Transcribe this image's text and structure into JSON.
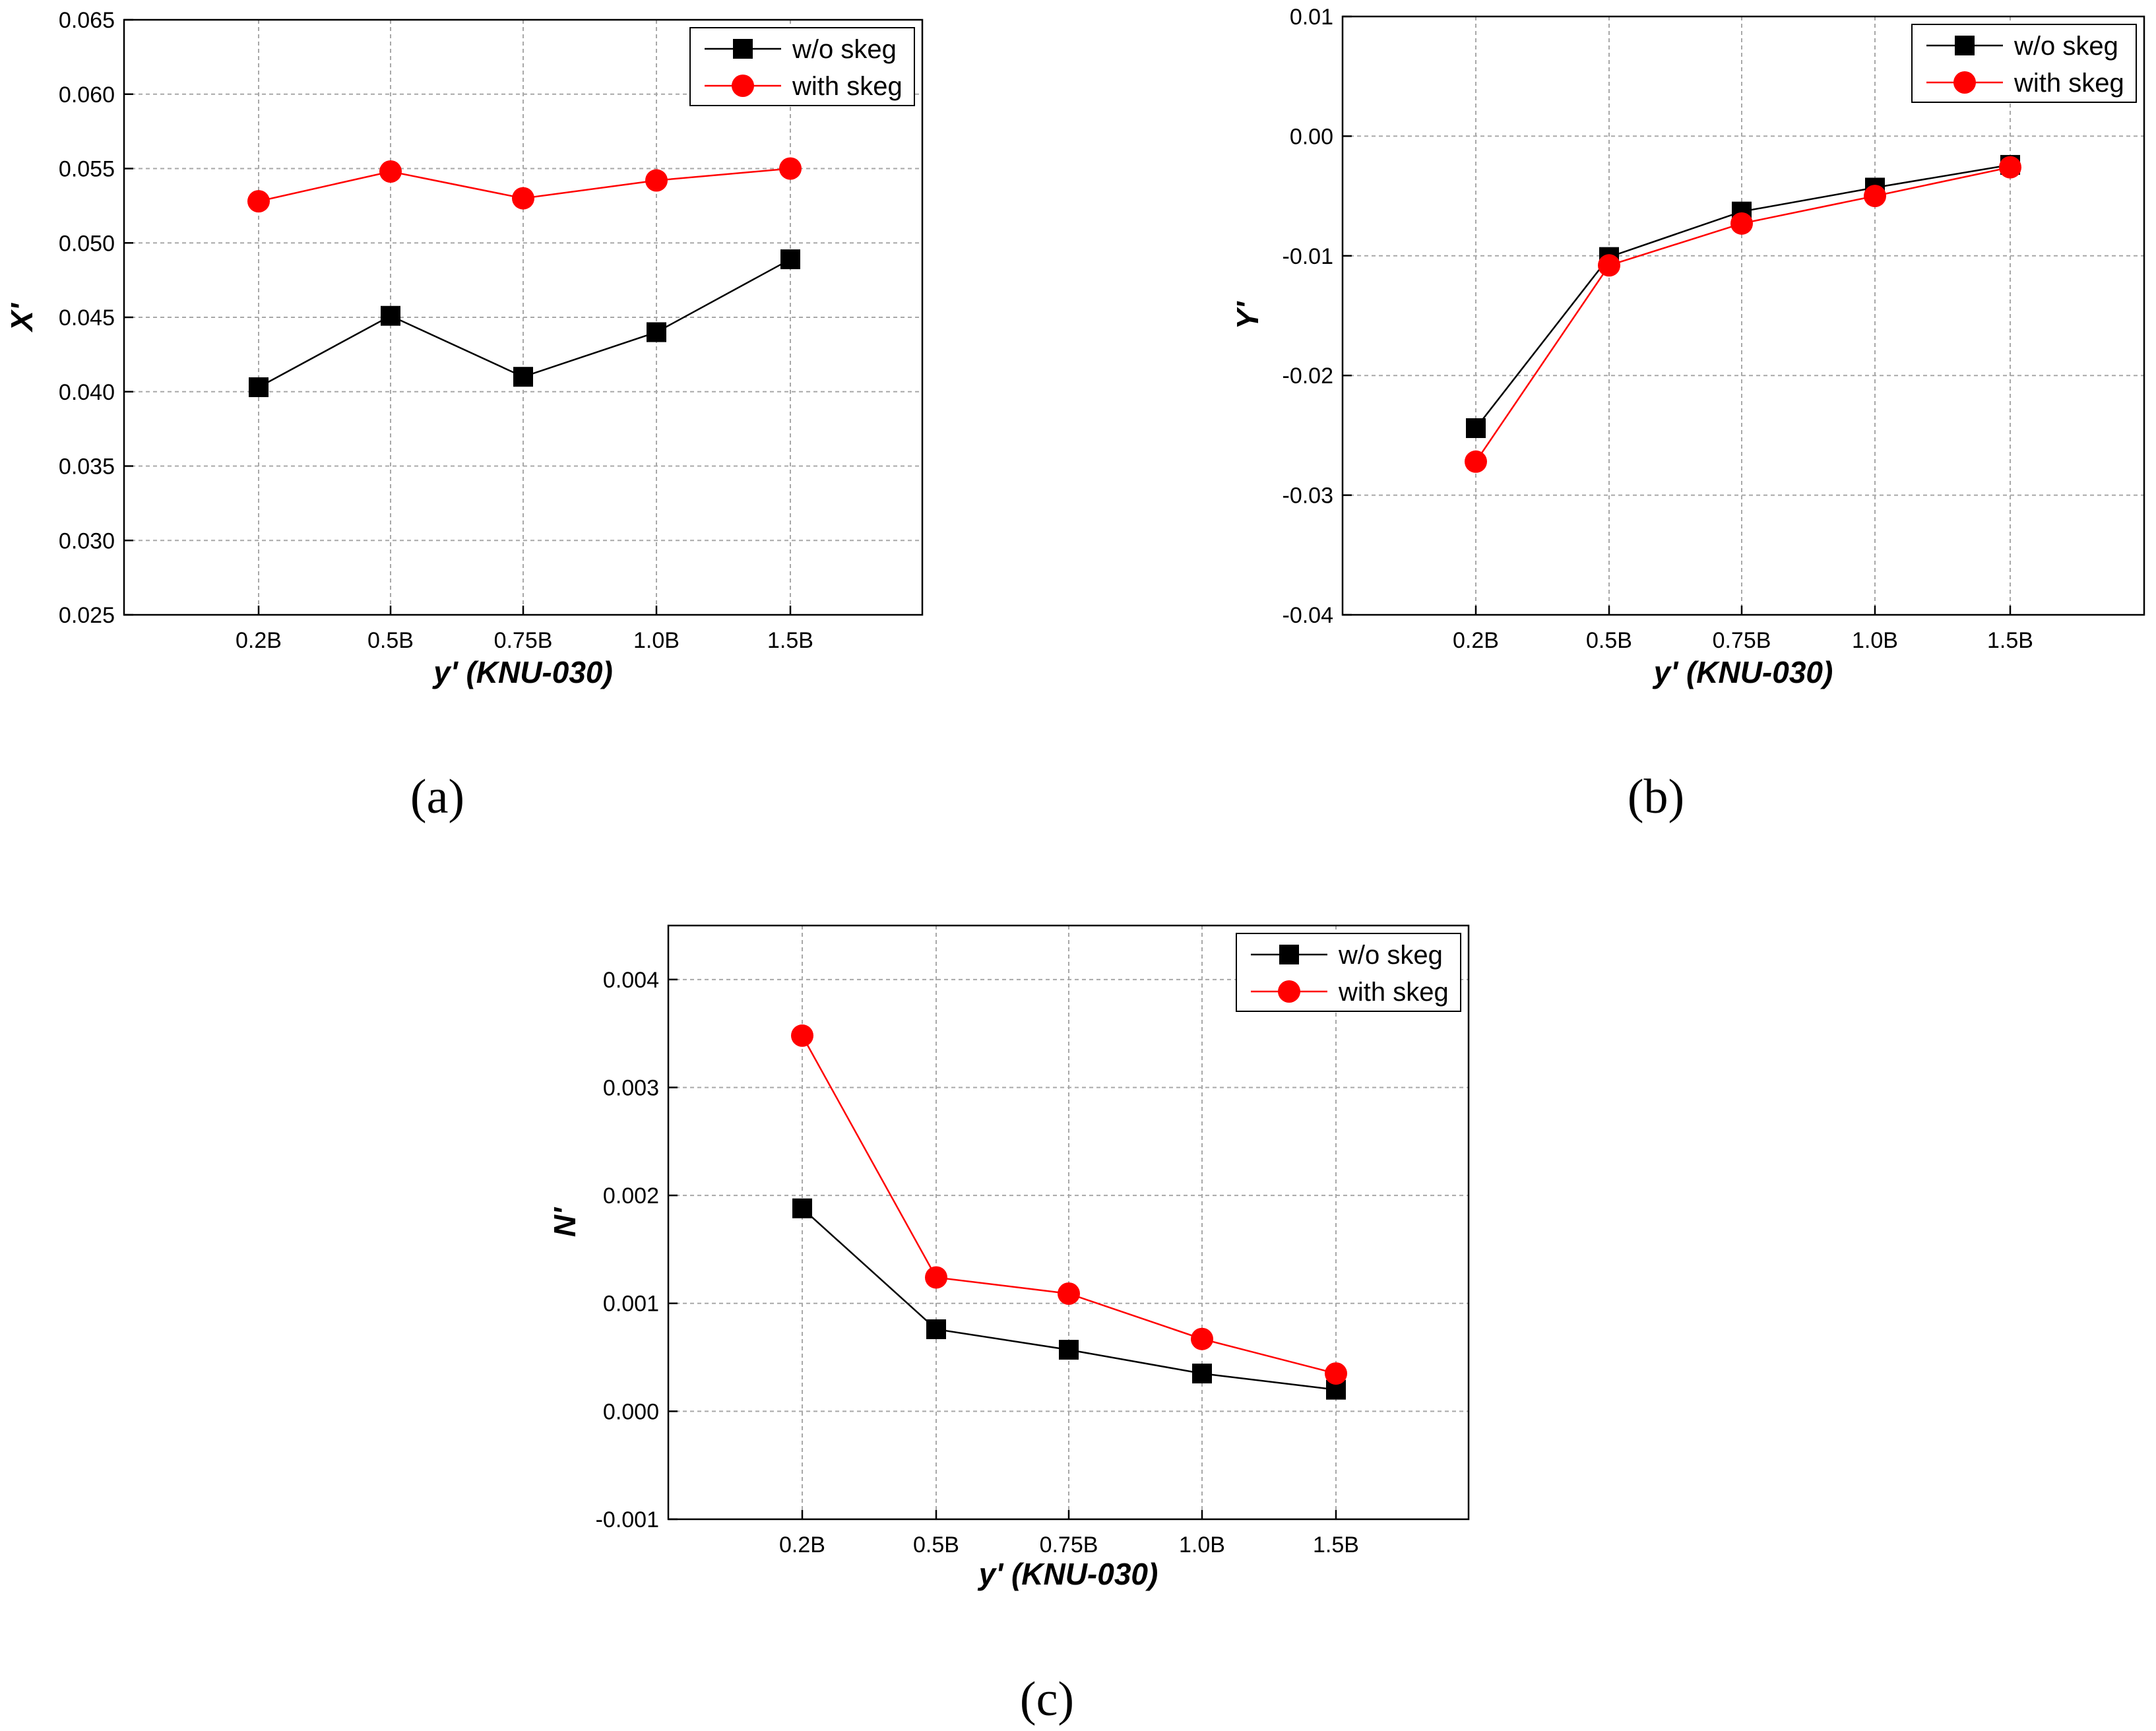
{
  "chart_data": [
    {
      "id": "a",
      "panel_label": "(a)",
      "type": "line",
      "xlabel": "y'  (KNU-030)",
      "ylabel": "X'",
      "categories": [
        "0.2B",
        "0.5B",
        "0.75B",
        "1.0B",
        "1.5B"
      ],
      "ylim": [
        0.025,
        0.065
      ],
      "yticks": [
        "0.025",
        "0.030",
        "0.035",
        "0.040",
        "0.045",
        "0.050",
        "0.055",
        "0.060",
        "0.065"
      ],
      "legend_position": "top-right",
      "grid": true,
      "series": [
        {
          "name": "w/o skeg",
          "color": "#000000",
          "marker": "square",
          "values": [
            0.0403,
            0.0451,
            0.041,
            0.044,
            0.0489
          ]
        },
        {
          "name": "with skeg",
          "color": "#ff0000",
          "marker": "circle",
          "values": [
            0.0528,
            0.0548,
            0.053,
            0.0542,
            0.055
          ]
        }
      ]
    },
    {
      "id": "b",
      "panel_label": "(b)",
      "type": "line",
      "xlabel": "y'  (KNU-030)",
      "ylabel": "Y'",
      "categories": [
        "0.2B",
        "0.5B",
        "0.75B",
        "1.0B",
        "1.5B"
      ],
      "ylim": [
        -0.04,
        0.01
      ],
      "yticks": [
        "-0.04",
        "-0.03",
        "-0.02",
        "-0.01",
        "0.00",
        "0.01"
      ],
      "legend_position": "top-right",
      "grid": true,
      "series": [
        {
          "name": "w/o skeg",
          "color": "#000000",
          "marker": "square",
          "values": [
            -0.0244,
            -0.0101,
            -0.0063,
            -0.0043,
            -0.0024
          ]
        },
        {
          "name": "with skeg",
          "color": "#ff0000",
          "marker": "circle",
          "values": [
            -0.0272,
            -0.0108,
            -0.0073,
            -0.005,
            -0.0026
          ]
        }
      ]
    },
    {
      "id": "c",
      "panel_label": "(c)",
      "type": "line",
      "xlabel": "y'  (KNU-030)",
      "ylabel": "N'",
      "categories": [
        "0.2B",
        "0.5B",
        "0.75B",
        "1.0B",
        "1.5B"
      ],
      "ylim": [
        -0.001,
        0.0045
      ],
      "yticks": [
        "-0.001",
        "0.000",
        "0.001",
        "0.002",
        "0.003",
        "0.004"
      ],
      "legend_position": "top-right",
      "grid": true,
      "series": [
        {
          "name": "w/o skeg",
          "color": "#000000",
          "marker": "square",
          "values": [
            0.00188,
            0.00076,
            0.00057,
            0.00035,
            0.0002
          ]
        },
        {
          "name": "with skeg",
          "color": "#ff0000",
          "marker": "circle",
          "values": [
            0.00348,
            0.00124,
            0.00109,
            0.00067,
            0.00035
          ]
        }
      ]
    }
  ]
}
